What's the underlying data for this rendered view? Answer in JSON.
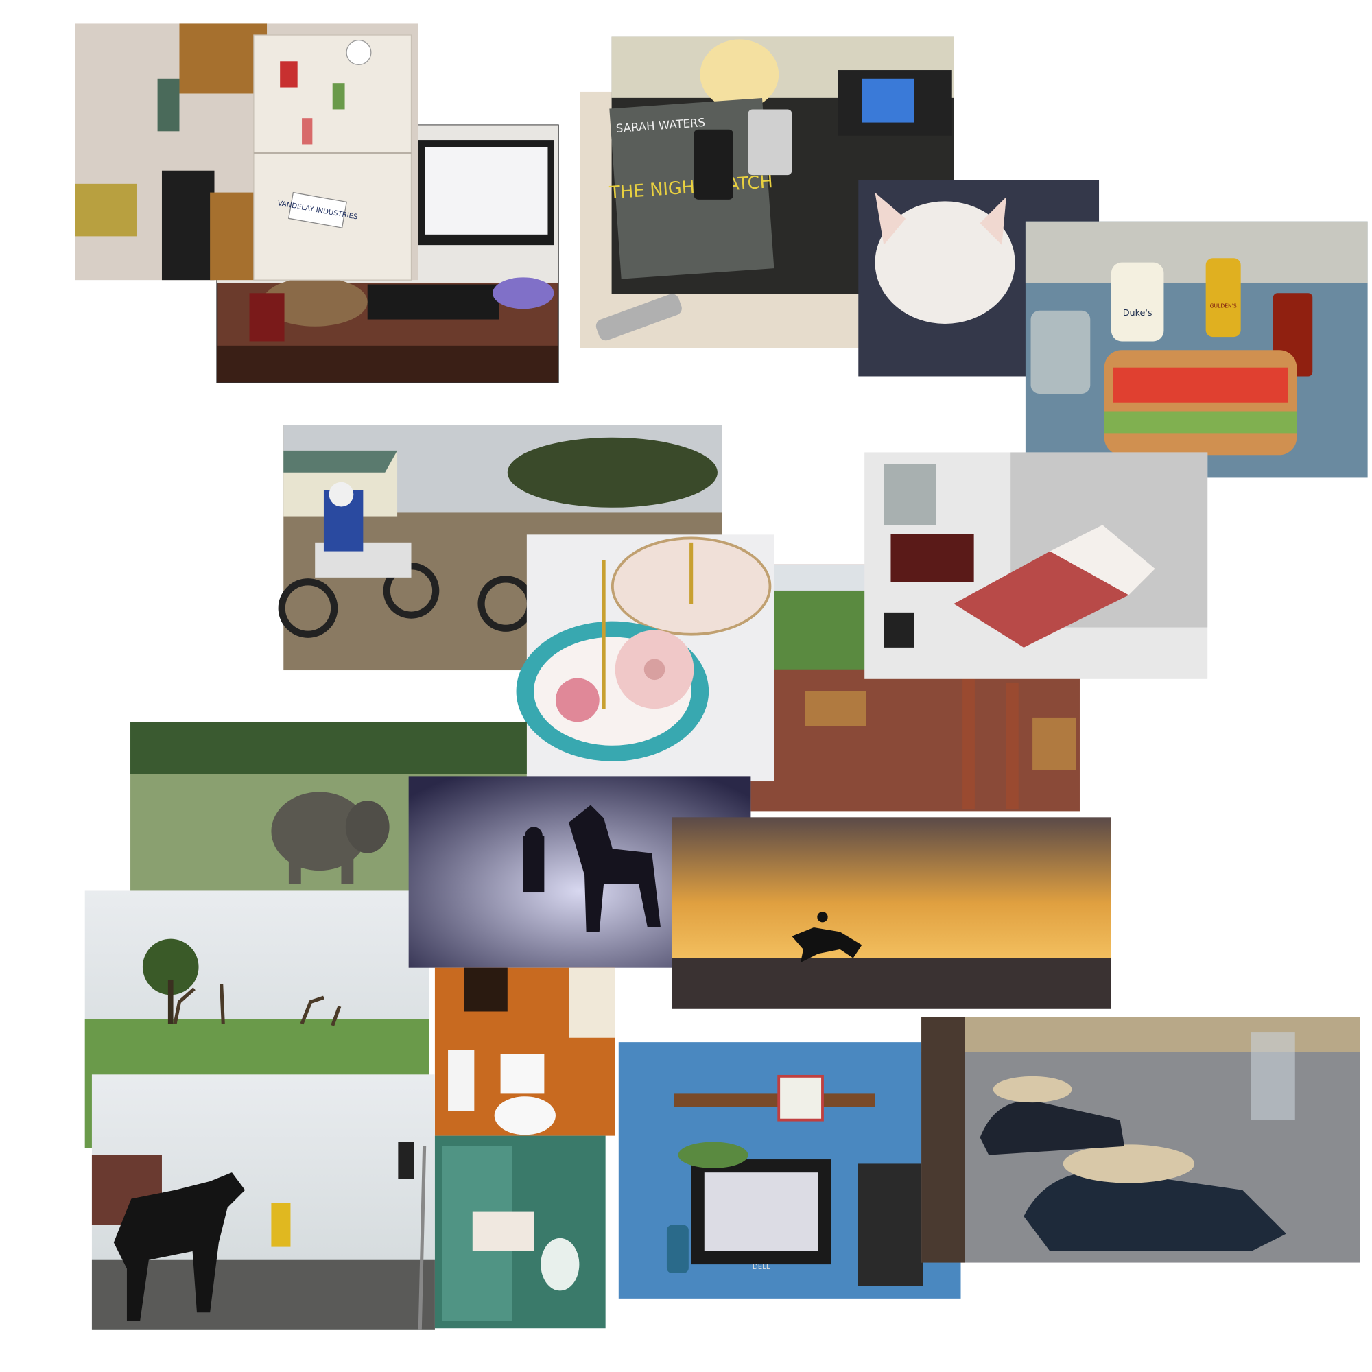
{
  "book": {
    "author": "SARAH WATERS",
    "title": "THE NIGHT WATCH"
  },
  "magnet": "VANDELAY INDUSTRIES",
  "mayo": "Duke's",
  "mustard": "GULDEN'S",
  "monitor_brand": "DELL"
}
